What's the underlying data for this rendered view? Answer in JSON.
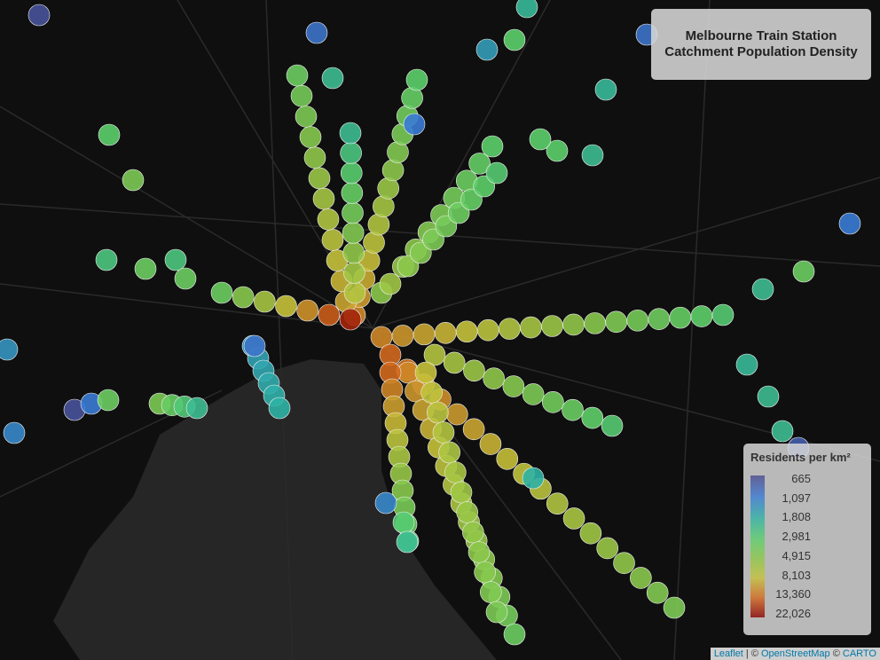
{
  "title": {
    "line1": "Melbourne Train Station",
    "line2": "Catchment Population Density"
  },
  "legend": {
    "title": "Residents per km²",
    "labels": [
      "665",
      "1,097",
      "1,808",
      "2,981",
      "4,915",
      "8,103",
      "13,360",
      "22,026"
    ]
  },
  "attribution": {
    "parts": [
      "Leaflet",
      "| ©",
      "OpenStreetMap",
      "©",
      "CARTO"
    ]
  }
}
